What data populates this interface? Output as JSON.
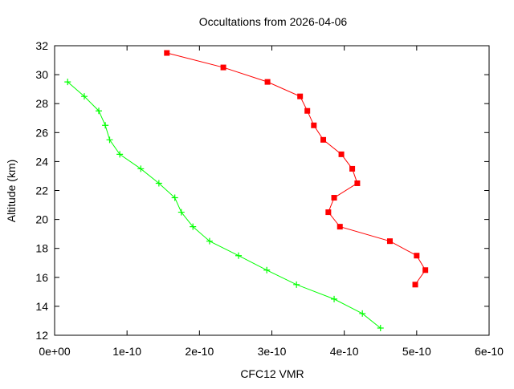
{
  "chart_data": {
    "type": "line",
    "title": "Occultations from 2026-04-06",
    "xlabel": "CFC12 VMR",
    "ylabel": "Altitude (km)",
    "xlim": [
      0,
      6e-10
    ],
    "ylim": [
      12,
      32
    ],
    "x_ticks": [
      "0e+00",
      "1e-10",
      "2e-10",
      "3e-10",
      "4e-10",
      "5e-10",
      "6e-10"
    ],
    "y_ticks": [
      "12",
      "14",
      "16",
      "18",
      "20",
      "22",
      "24",
      "26",
      "28",
      "30",
      "32"
    ],
    "grid": false,
    "series": [
      {
        "color": "#ff0000",
        "marker": "square",
        "x": [
          1.55e-10,
          2.33e-10,
          2.94e-10,
          3.39e-10,
          3.49e-10,
          3.58e-10,
          3.71e-10,
          3.96e-10,
          4.11e-10,
          4.18e-10,
          3.86e-10,
          3.78e-10,
          3.94e-10,
          4.63e-10,
          5e-10,
          5.12e-10,
          4.98e-10
        ],
        "y": [
          31.5,
          30.5,
          29.5,
          28.5,
          27.5,
          26.5,
          25.5,
          24.5,
          23.5,
          22.5,
          21.5,
          20.5,
          19.5,
          18.5,
          17.5,
          16.5,
          15.5
        ]
      },
      {
        "color": "#00ff00",
        "marker": "plus",
        "x": [
          1.8e-11,
          4.1e-11,
          6.1e-11,
          7e-11,
          7.6e-11,
          9e-11,
          1.19e-10,
          1.44e-10,
          1.66e-10,
          1.75e-10,
          1.91e-10,
          2.14e-10,
          2.54e-10,
          2.93e-10,
          3.34e-10,
          3.86e-10,
          4.25e-10,
          4.5e-10
        ],
        "y": [
          29.5,
          28.5,
          27.5,
          26.5,
          25.5,
          24.5,
          23.5,
          22.5,
          21.5,
          20.5,
          19.5,
          18.5,
          17.5,
          16.5,
          15.5,
          14.5,
          13.5,
          12.5
        ]
      }
    ]
  }
}
